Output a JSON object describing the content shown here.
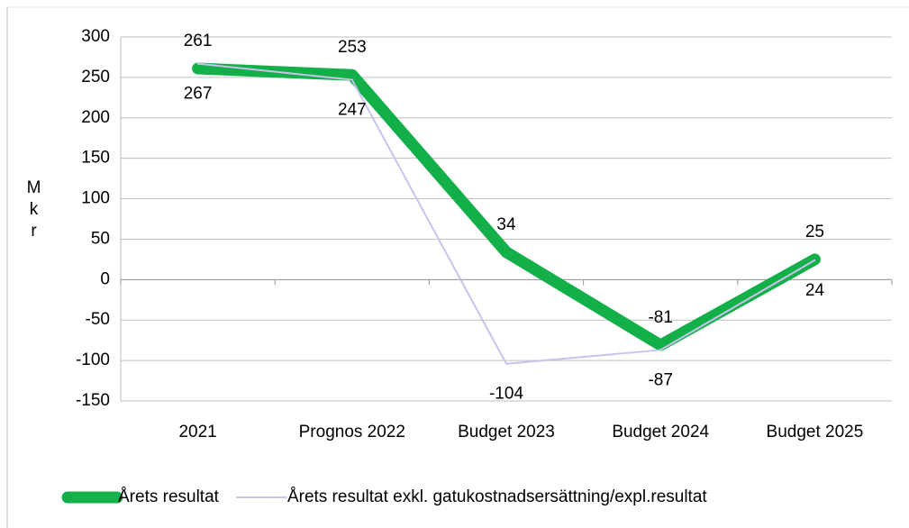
{
  "chart_data": {
    "type": "line",
    "y_label": "Mkr",
    "categories": [
      "2021",
      "Prognos 2022",
      "Budget 2023",
      "Budget 2024",
      "Budget 2025"
    ],
    "series": [
      {
        "name": "Årets resultat",
        "color": "#13b04a",
        "values": [
          261,
          253,
          34,
          -81,
          25
        ]
      },
      {
        "name": "Årets resultat exkl. gatukostnadsersättning/expl.resultat",
        "color": "#c9c2ec",
        "values": [
          267,
          247,
          -104,
          -87,
          24
        ]
      }
    ],
    "ylim": [
      -150,
      300
    ],
    "yticks": [
      -150,
      -100,
      -50,
      0,
      50,
      100,
      150,
      200,
      250,
      300
    ],
    "grid": true,
    "legend": "bottom"
  }
}
